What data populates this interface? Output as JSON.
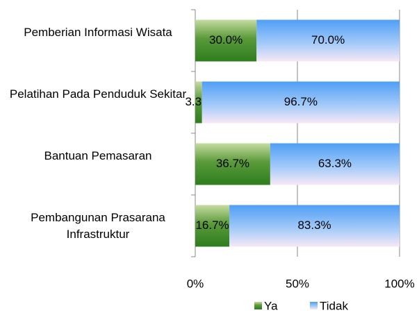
{
  "chart_data": {
    "type": "bar",
    "orientation": "horizontal",
    "stacked": true,
    "categories": [
      "Pemberian Informasi Wisata",
      "Pelatihan Pada Penduduk Sekitar",
      "Bantuan Pemasaran",
      "Pembangunan Prasarana Infrastruktur"
    ],
    "series": [
      {
        "name": "Ya",
        "color": "#2e7d1e",
        "values": [
          30.0,
          3.3,
          36.7,
          16.7
        ],
        "value_labels": [
          "30.0%",
          "3.3%",
          "36.7%",
          "16.7%"
        ]
      },
      {
        "name": "Tidak",
        "color": "#4f9ef5",
        "values": [
          70.0,
          96.7,
          63.3,
          83.3
        ],
        "value_labels": [
          "70.0%",
          "96.7%",
          "63.3%",
          "83.3%"
        ]
      }
    ],
    "xlim": [
      0,
      100
    ],
    "xticks": [
      {
        "value": 0,
        "label": "0%"
      },
      {
        "value": 50,
        "label": "50%"
      },
      {
        "value": 100,
        "label": "100%"
      }
    ],
    "grid": true,
    "legend": "bottom"
  }
}
